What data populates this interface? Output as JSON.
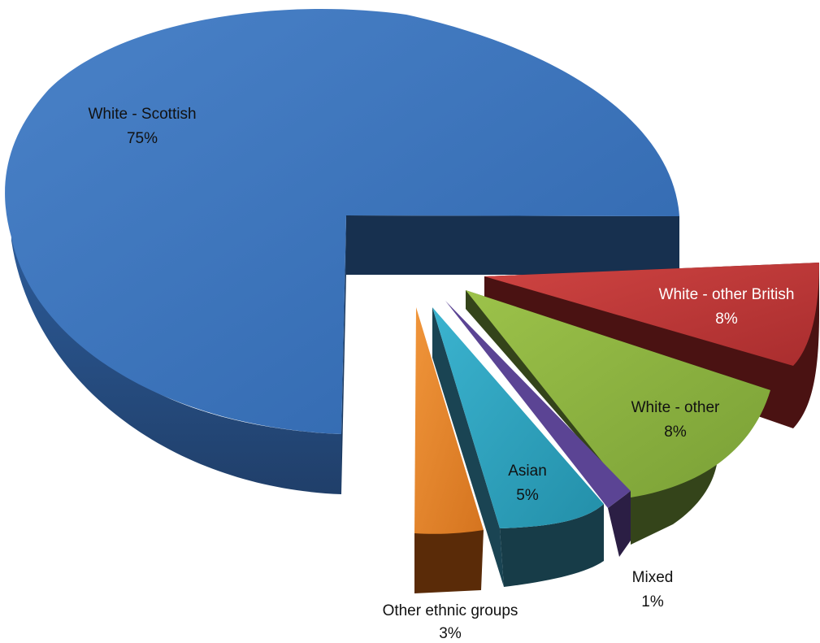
{
  "chart_data": {
    "type": "pie",
    "style": "3d-exploded",
    "categories": [
      "White - Scottish",
      "White - other British",
      "White - other",
      "Mixed",
      "Asian",
      "Other ethnic groups"
    ],
    "values": [
      75,
      8,
      8,
      1,
      5,
      3
    ],
    "labels": [
      {
        "name": "White - Scottish",
        "value": "75%"
      },
      {
        "name": "White - other British",
        "value": "8%"
      },
      {
        "name": "White - other",
        "value": "8%"
      },
      {
        "name": "Mixed",
        "value": "1%"
      },
      {
        "name": "Asian",
        "value": "5%"
      },
      {
        "name": "Other ethnic groups",
        "value": "3%"
      }
    ],
    "colors": {
      "White - Scottish": "#3a6fb8",
      "White - other British": "#c0393a",
      "White - other": "#8fb43c",
      "Mixed": "#5b4494",
      "Asian": "#2ea4c0",
      "Other ethnic groups": "#e6872c"
    }
  }
}
